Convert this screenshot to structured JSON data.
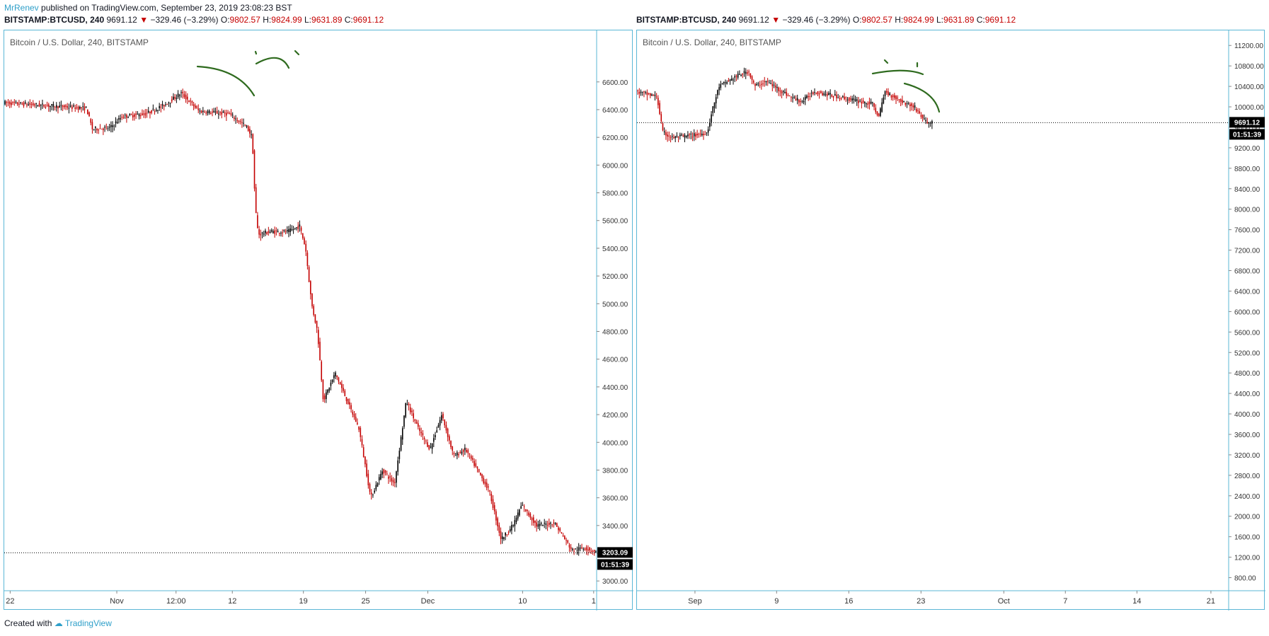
{
  "header": {
    "author": "MrRenev",
    "published_text": "published on TradingView.com, September 23, 2019 23:08:23 BST"
  },
  "legend": {
    "symbol": "BITSTAMP:BTCUSD, 240",
    "price": "9691.12",
    "change": "−329.46 (−3.29%)",
    "o_label": "O:",
    "o_value": "9802.57",
    "h_label": "H:",
    "h_value": "9824.99",
    "l_label": "L:",
    "l_value": "9631.89",
    "c_label": "C:",
    "c_value": "9691.12"
  },
  "colors": {
    "up": "#000000",
    "down": "#c40000",
    "drawing": "#2f6b1f",
    "border": "#5bb7d6"
  },
  "footer": {
    "created_with": "Created with",
    "brand": "TradingView"
  },
  "chart_data": [
    {
      "type": "candlestick",
      "title": "Bitcoin / U.S. Dollar, 240, BITSTAMP",
      "ylim": [
        2950,
        6900
      ],
      "y_ticks": [
        "6600.00",
        "6400.00",
        "6200.00",
        "6000.00",
        "5800.00",
        "5600.00",
        "5400.00",
        "5200.00",
        "5000.00",
        "4800.00",
        "4600.00",
        "4400.00",
        "4200.00",
        "4000.00",
        "3800.00",
        "3600.00",
        "3400.00",
        "3200.00",
        "3000.00"
      ],
      "x_ticks": [
        {
          "label": "22",
          "t": 0.01
        },
        {
          "label": "Nov",
          "t": 0.19
        },
        {
          "label": "12:00",
          "t": 0.29
        },
        {
          "label": "12",
          "t": 0.385
        },
        {
          "label": "19",
          "t": 0.505
        },
        {
          "label": "25",
          "t": 0.61
        },
        {
          "label": "Dec",
          "t": 0.715
        },
        {
          "label": "10",
          "t": 0.875
        },
        {
          "label": "1",
          "t": 0.995
        }
      ],
      "last_price": "3203.09",
      "countdown": "01:51:39",
      "path": [
        [
          0.0,
          6450
        ],
        [
          0.14,
          6410
        ],
        [
          0.15,
          6260
        ],
        [
          0.18,
          6270
        ],
        [
          0.2,
          6350
        ],
        [
          0.24,
          6370
        ],
        [
          0.27,
          6430
        ],
        [
          0.3,
          6520
        ],
        [
          0.33,
          6390
        ],
        [
          0.38,
          6370
        ],
        [
          0.41,
          6280
        ],
        [
          0.42,
          6200
        ],
        [
          0.425,
          5700
        ],
        [
          0.43,
          5500
        ],
        [
          0.45,
          5520
        ],
        [
          0.48,
          5520
        ],
        [
          0.5,
          5560
        ],
        [
          0.51,
          5400
        ],
        [
          0.52,
          5000
        ],
        [
          0.53,
          4800
        ],
        [
          0.54,
          4300
        ],
        [
          0.56,
          4500
        ],
        [
          0.58,
          4300
        ],
        [
          0.6,
          4100
        ],
        [
          0.62,
          3600
        ],
        [
          0.64,
          3800
        ],
        [
          0.66,
          3700
        ],
        [
          0.68,
          4300
        ],
        [
          0.7,
          4100
        ],
        [
          0.72,
          3950
        ],
        [
          0.74,
          4200
        ],
        [
          0.76,
          3900
        ],
        [
          0.78,
          3950
        ],
        [
          0.8,
          3800
        ],
        [
          0.82,
          3650
        ],
        [
          0.84,
          3300
        ],
        [
          0.86,
          3400
        ],
        [
          0.875,
          3550
        ],
        [
          0.9,
          3400
        ],
        [
          0.93,
          3420
        ],
        [
          0.96,
          3220
        ],
        [
          0.98,
          3240
        ],
        [
          1.0,
          3210
        ]
      ]
    },
    {
      "type": "candlestick",
      "title": "Bitcoin / U.S. Dollar, 240, BITSTAMP",
      "ylim": [
        600,
        11300
      ],
      "y_ticks": [
        "11200.00",
        "10800.00",
        "10400.00",
        "10000.00",
        "9600.00",
        "9200.00",
        "8800.00",
        "8400.00",
        "8000.00",
        "7600.00",
        "7200.00",
        "6800.00",
        "6400.00",
        "6000.00",
        "5600.00",
        "5200.00",
        "4800.00",
        "4400.00",
        "4000.00",
        "3600.00",
        "3200.00",
        "2800.00",
        "2400.00",
        "2000.00",
        "1600.00",
        "1200.00",
        "800.00"
      ],
      "x_ticks": [
        {
          "label": "Sep",
          "t": 0.098
        },
        {
          "label": "9",
          "t": 0.236
        },
        {
          "label": "16",
          "t": 0.358
        },
        {
          "label": "23",
          "t": 0.48
        },
        {
          "label": "Oct",
          "t": 0.62
        },
        {
          "label": "7",
          "t": 0.724
        },
        {
          "label": "14",
          "t": 0.845
        },
        {
          "label": "21",
          "t": 0.97
        }
      ],
      "last_price": "9691.12",
      "countdown": "01:51:39",
      "data_extent": 0.5,
      "path": [
        [
          0.0,
          10300
        ],
        [
          0.035,
          10200
        ],
        [
          0.045,
          9500
        ],
        [
          0.06,
          9400
        ],
        [
          0.1,
          9450
        ],
        [
          0.12,
          9500
        ],
        [
          0.13,
          10000
        ],
        [
          0.14,
          10400
        ],
        [
          0.17,
          10600
        ],
        [
          0.19,
          10700
        ],
        [
          0.2,
          10400
        ],
        [
          0.22,
          10500
        ],
        [
          0.26,
          10200
        ],
        [
          0.28,
          10100
        ],
        [
          0.3,
          10300
        ],
        [
          0.34,
          10200
        ],
        [
          0.38,
          10100
        ],
        [
          0.4,
          10050
        ],
        [
          0.41,
          9800
        ],
        [
          0.42,
          10300
        ],
        [
          0.45,
          10100
        ],
        [
          0.47,
          10000
        ],
        [
          0.49,
          9700
        ]
      ]
    }
  ]
}
